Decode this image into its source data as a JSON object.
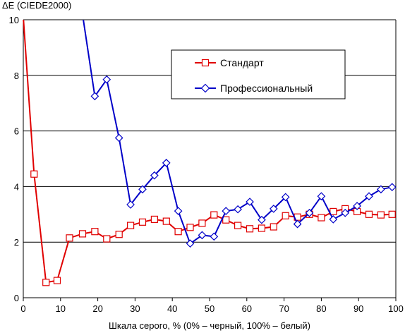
{
  "chart_data": {
    "type": "line",
    "ylabel": "ΔE (CIEDE2000)",
    "xlabel": "Шкала серого, % (0% – черный, 100% – белый)",
    "xlim": [
      0,
      100
    ],
    "ylim": [
      0,
      10
    ],
    "xticks": [
      "0",
      "10",
      "20",
      "30",
      "40",
      "50",
      "60",
      "70",
      "80",
      "90",
      "100"
    ],
    "yticks": [
      "0",
      "2",
      "4",
      "6",
      "8",
      "10"
    ],
    "grid": "horizontal",
    "legend_position": "top-right",
    "series": [
      {
        "name": "Стандарт",
        "color": "#e00000",
        "marker": "square",
        "x": [
          0,
          2.9,
          6.1,
          9.1,
          12.4,
          15.9,
          19.2,
          22.4,
          25.7,
          28.8,
          32.0,
          35.2,
          38.4,
          41.6,
          44.8,
          48.0,
          51.2,
          54.4,
          57.6,
          60.8,
          64.0,
          67.2,
          70.4,
          73.6,
          76.8,
          80.0,
          83.2,
          86.4,
          89.6,
          92.8,
          96.0,
          99.0
        ],
        "y": [
          10.1,
          4.45,
          0.55,
          0.62,
          2.15,
          2.3,
          2.38,
          2.12,
          2.28,
          2.6,
          2.72,
          2.82,
          2.75,
          2.38,
          2.53,
          2.68,
          2.98,
          2.8,
          2.6,
          2.48,
          2.5,
          2.55,
          2.95,
          2.9,
          3.0,
          2.88,
          3.1,
          3.2,
          3.1,
          3.0,
          2.98,
          3.0
        ]
      },
      {
        "name": "Профессиональный",
        "color": "#0000c8",
        "marker": "diamond",
        "x": [
          16.0,
          19.2,
          22.4,
          25.7,
          28.8,
          32.0,
          35.2,
          38.4,
          41.6,
          44.8,
          48.0,
          51.2,
          54.4,
          57.6,
          60.8,
          64.0,
          67.2,
          70.4,
          73.6,
          76.8,
          80.0,
          83.2,
          86.4,
          89.6,
          92.8,
          96.0,
          99.0
        ],
        "y": [
          10.1,
          7.25,
          7.85,
          5.75,
          3.35,
          3.9,
          4.4,
          4.85,
          3.12,
          1.95,
          2.25,
          2.2,
          3.12,
          3.18,
          3.45,
          2.8,
          3.2,
          3.62,
          2.65,
          3.05,
          3.65,
          2.82,
          3.05,
          3.3,
          3.65,
          3.9,
          3.98
        ]
      }
    ]
  }
}
